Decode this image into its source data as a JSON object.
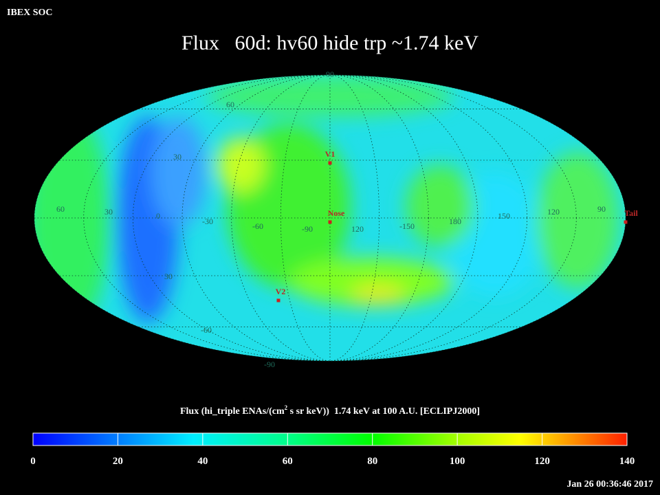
{
  "header": {
    "org": "IBEX SOC",
    "title": "Flux   60d: hv60 hide trp ~1.74 keV"
  },
  "map": {
    "longitude_labels": [
      "60",
      "30",
      "0",
      "-30",
      "-60",
      "-90",
      "120",
      "-150",
      "180",
      "150",
      "120",
      "90"
    ],
    "latitude_labels": [
      "90",
      "60",
      "30",
      "30",
      "-60",
      "-90"
    ],
    "markers": [
      {
        "label": "V1"
      },
      {
        "label": "Nose"
      },
      {
        "label": "V2"
      },
      {
        "label": "Tail"
      }
    ]
  },
  "colorbar": {
    "label": {
      "prefix": "Flux (hi_triple ENAs/(cm",
      "superscript": "2",
      "suffix": " s sr keV))  1.74 keV at 100 A.U. [ECLIPJ2000]"
    },
    "lim": [
      0,
      140
    ],
    "ticks": [
      0,
      20,
      40,
      60,
      80,
      100,
      120,
      140
    ]
  },
  "footer": {
    "timestamp": "Jan 26 00:36:46 2017"
  }
}
